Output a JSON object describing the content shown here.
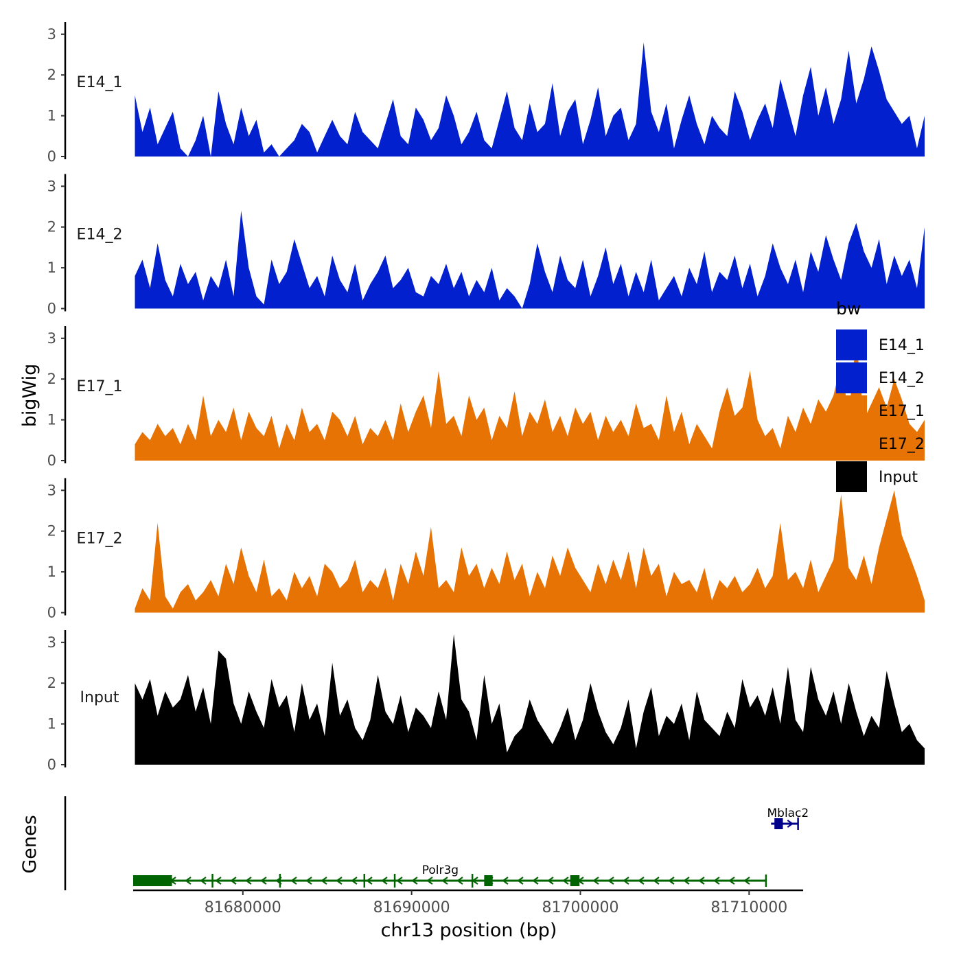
{
  "chart_data": {
    "type": "area",
    "ylabel": "bigWig",
    "xlabel": "chr13 position (bp)",
    "genes_label": "Genes",
    "ylim": [
      0,
      3.3
    ],
    "y_ticks": [
      "0",
      "1",
      "2",
      "3"
    ],
    "xlim": [
      81673500,
      81713200
    ],
    "x_ticks": [
      {
        "label": "81680000",
        "value": 81680000
      },
      {
        "label": "81690000",
        "value": 81690000
      },
      {
        "label": "81700000",
        "value": 81700000
      },
      {
        "label": "81710000",
        "value": 81710000
      }
    ],
    "legend": {
      "title": "bw",
      "position": "right",
      "entries": [
        {
          "label": "E14_1",
          "color": "#0320CF"
        },
        {
          "label": "E14_2",
          "color": "#0320CF"
        },
        {
          "label": "E17_1",
          "color": "#E67304"
        },
        {
          "label": "E17_2",
          "color": "#E67304"
        },
        {
          "label": "Input",
          "color": "#000000"
        }
      ]
    },
    "x_start": 81673600,
    "x_step": 450,
    "tracks": [
      {
        "name": "E14_1",
        "color": "#0320CF",
        "values": [
          1.5,
          0.6,
          1.2,
          0.3,
          0.7,
          1.1,
          0.2,
          0,
          0.4,
          1.0,
          0,
          1.6,
          0.8,
          0.3,
          1.2,
          0.5,
          0.9,
          0.1,
          0.3,
          0,
          0.2,
          0.4,
          0.8,
          0.6,
          0.1,
          0.5,
          0.9,
          0.5,
          0.3,
          1.1,
          0.6,
          0.4,
          0.2,
          0.8,
          1.4,
          0.5,
          0.3,
          1.2,
          0.9,
          0.4,
          0.7,
          1.5,
          1.0,
          0.3,
          0.6,
          1.1,
          0.4,
          0.2,
          0.9,
          1.6,
          0.7,
          0.4,
          1.3,
          0.6,
          0.8,
          1.8,
          0.5,
          1.1,
          1.4,
          0.3,
          0.9,
          1.7,
          0.5,
          1.0,
          1.2,
          0.4,
          0.8,
          2.8,
          1.1,
          0.6,
          1.3,
          0.2,
          0.9,
          1.5,
          0.8,
          0.3,
          1.0,
          0.7,
          0.5,
          1.6,
          1.1,
          0.4,
          0.9,
          1.3,
          0.7,
          1.9,
          1.2,
          0.5,
          1.5,
          2.2,
          1.0,
          1.7,
          0.8,
          1.4,
          2.6,
          1.3,
          1.9,
          2.7,
          2.1,
          1.4,
          1.1,
          0.8,
          1.0,
          0.2,
          1.0
        ]
      },
      {
        "name": "E14_2",
        "color": "#0320CF",
        "values": [
          0.8,
          1.2,
          0.5,
          1.6,
          0.7,
          0.3,
          1.1,
          0.6,
          0.9,
          0.2,
          0.8,
          0.5,
          1.2,
          0.3,
          2.4,
          1.0,
          0.3,
          0.1,
          1.2,
          0.6,
          0.9,
          1.7,
          1.1,
          0.5,
          0.8,
          0.3,
          1.3,
          0.7,
          0.4,
          1.1,
          0.2,
          0.6,
          0.9,
          1.3,
          0.5,
          0.7,
          1.0,
          0.4,
          0.3,
          0.8,
          0.6,
          1.1,
          0.5,
          0.9,
          0.3,
          0.7,
          0.4,
          1.0,
          0.2,
          0.5,
          0.3,
          0,
          0.6,
          1.6,
          0.9,
          0.4,
          1.3,
          0.7,
          0.5,
          1.2,
          0.3,
          0.8,
          1.5,
          0.6,
          1.1,
          0.3,
          0.9,
          0.4,
          1.2,
          0.2,
          0.5,
          0.8,
          0.3,
          1.0,
          0.6,
          1.4,
          0.4,
          0.9,
          0.7,
          1.3,
          0.5,
          1.1,
          0.3,
          0.8,
          1.6,
          1.0,
          0.6,
          1.2,
          0.4,
          1.4,
          0.9,
          1.8,
          1.2,
          0.7,
          1.6,
          2.1,
          1.4,
          1.0,
          1.7,
          0.6,
          1.3,
          0.8,
          1.2,
          0.5,
          2.0
        ]
      },
      {
        "name": "E17_1",
        "color": "#E67304",
        "values": [
          0.4,
          0.7,
          0.5,
          0.9,
          0.6,
          0.8,
          0.4,
          0.9,
          0.5,
          1.6,
          0.6,
          1.0,
          0.7,
          1.3,
          0.5,
          1.2,
          0.8,
          0.6,
          1.1,
          0.3,
          0.9,
          0.5,
          1.3,
          0.7,
          0.9,
          0.5,
          1.2,
          1.0,
          0.6,
          1.1,
          0.4,
          0.8,
          0.6,
          1.0,
          0.5,
          1.4,
          0.7,
          1.2,
          1.6,
          0.8,
          2.2,
          0.9,
          1.1,
          0.6,
          1.6,
          1.0,
          1.3,
          0.5,
          1.1,
          0.8,
          1.7,
          0.6,
          1.2,
          0.9,
          1.5,
          0.7,
          1.1,
          0.6,
          1.3,
          0.9,
          1.2,
          0.5,
          1.1,
          0.7,
          1.0,
          0.6,
          1.4,
          0.8,
          0.9,
          0.5,
          1.6,
          0.7,
          1.2,
          0.4,
          0.9,
          0.6,
          0.3,
          1.2,
          1.8,
          1.1,
          1.3,
          2.2,
          1.0,
          0.6,
          0.8,
          0.3,
          1.1,
          0.7,
          1.3,
          0.9,
          1.5,
          1.2,
          1.6,
          2.4,
          1.1,
          3.0,
          1.0,
          1.4,
          1.8,
          1.3,
          2.0,
          1.5,
          0.9,
          0.7,
          1.0
        ]
      },
      {
        "name": "E17_2",
        "color": "#E67304",
        "values": [
          0.1,
          0.6,
          0.3,
          2.2,
          0.4,
          0.1,
          0.5,
          0.7,
          0.3,
          0.5,
          0.8,
          0.4,
          1.2,
          0.7,
          1.6,
          0.9,
          0.5,
          1.3,
          0.4,
          0.6,
          0.3,
          1.0,
          0.6,
          0.9,
          0.4,
          1.2,
          1.0,
          0.6,
          0.8,
          1.3,
          0.5,
          0.8,
          0.6,
          1.1,
          0.3,
          1.2,
          0.7,
          1.5,
          0.9,
          2.1,
          0.6,
          0.8,
          0.5,
          1.6,
          0.9,
          1.2,
          0.6,
          1.1,
          0.7,
          1.5,
          0.8,
          1.2,
          0.4,
          1.0,
          0.6,
          1.4,
          0.9,
          1.6,
          1.1,
          0.8,
          0.5,
          1.2,
          0.7,
          1.3,
          0.8,
          1.5,
          0.6,
          1.6,
          0.9,
          1.2,
          0.4,
          1.0,
          0.7,
          0.8,
          0.5,
          1.1,
          0.3,
          0.8,
          0.6,
          0.9,
          0.5,
          0.7,
          1.1,
          0.6,
          0.9,
          2.2,
          0.8,
          1.0,
          0.6,
          1.3,
          0.5,
          0.9,
          1.3,
          2.9,
          1.1,
          0.8,
          1.4,
          0.7,
          1.6,
          2.3,
          3.0,
          1.9,
          1.4,
          0.9,
          0.3
        ]
      },
      {
        "name": "Input",
        "color": "#000000",
        "values": [
          2.0,
          1.6,
          2.1,
          1.2,
          1.8,
          1.4,
          1.6,
          2.2,
          1.3,
          1.9,
          1.0,
          2.8,
          2.6,
          1.5,
          1.0,
          1.8,
          1.3,
          0.9,
          2.1,
          1.4,
          1.7,
          0.8,
          2.0,
          1.1,
          1.5,
          0.7,
          2.5,
          1.2,
          1.6,
          0.9,
          0.6,
          1.1,
          2.2,
          1.3,
          1.0,
          1.7,
          0.8,
          1.4,
          1.2,
          0.9,
          1.8,
          1.1,
          3.2,
          1.6,
          1.3,
          0.6,
          2.2,
          1.0,
          1.5,
          0.3,
          0.7,
          0.9,
          1.6,
          1.1,
          0.8,
          0.5,
          0.9,
          1.4,
          0.6,
          1.1,
          2.0,
          1.3,
          0.8,
          0.5,
          0.9,
          1.6,
          0.4,
          1.3,
          1.9,
          0.7,
          1.2,
          1.0,
          1.5,
          0.6,
          1.8,
          1.1,
          0.9,
          0.7,
          1.3,
          0.9,
          2.1,
          1.4,
          1.7,
          1.2,
          1.9,
          1.0,
          2.4,
          1.1,
          0.8,
          2.4,
          1.6,
          1.2,
          1.8,
          1.0,
          2.0,
          1.3,
          0.7,
          1.2,
          0.9,
          2.3,
          1.5,
          0.8,
          1.0,
          0.6,
          0.4
        ]
      }
    ],
    "genes": [
      {
        "name": "Polr3g",
        "strand": "-",
        "color": "#006400",
        "start": 81673500,
        "end": 81711000,
        "exons": [
          [
            81673500,
            81675800
          ],
          [
            81694300,
            81694800
          ],
          [
            81699400,
            81699950
          ]
        ],
        "junctions": [
          81678200,
          81682200,
          81687200,
          81689000,
          81693600
        ]
      },
      {
        "name": "Mblac2",
        "strand": "+",
        "color": "#00008B",
        "start": 81711300,
        "end": 81712900,
        "exons": [
          [
            81711500,
            81712000
          ]
        ],
        "junctions": []
      }
    ]
  }
}
